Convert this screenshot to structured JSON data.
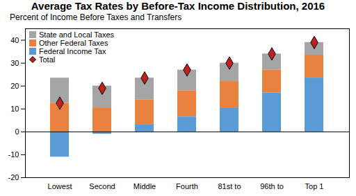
{
  "chart_data": {
    "type": "bar",
    "title": "Average Tax Rates by Before-Tax Income Distribution, 2016",
    "subtitle": "Percent of Income Before Taxes and Transfers",
    "categories": [
      "Lowest",
      "Second",
      "Middle",
      "Fourth",
      "81st to",
      "96th to",
      "Top 1"
    ],
    "series": [
      {
        "name": "State and Local Taxes",
        "color": "#a5a5a5",
        "values": [
          11,
          9.5,
          9.5,
          9,
          8,
          7,
          5.5
        ]
      },
      {
        "name": "Other Federal Taxes",
        "color": "#e9823e",
        "values": [
          12.5,
          10.5,
          11,
          11.5,
          11.5,
          10,
          10
        ]
      },
      {
        "name": "Federal Income Tax",
        "color": "#5b9bd5",
        "values": [
          -11,
          -1,
          3,
          6.5,
          10.5,
          17,
          23.5
        ]
      },
      {
        "name": "Total",
        "type": "scatter",
        "marker": "diamond",
        "color": "#c0211f",
        "values": [
          12.5,
          19,
          23.5,
          27,
          30,
          34,
          39
        ]
      }
    ],
    "stacked": true,
    "ylim": [
      -20,
      45
    ],
    "yticks": [
      -20,
      -10,
      0,
      10,
      20,
      30,
      40
    ],
    "grid": false,
    "legend": "upper left"
  }
}
